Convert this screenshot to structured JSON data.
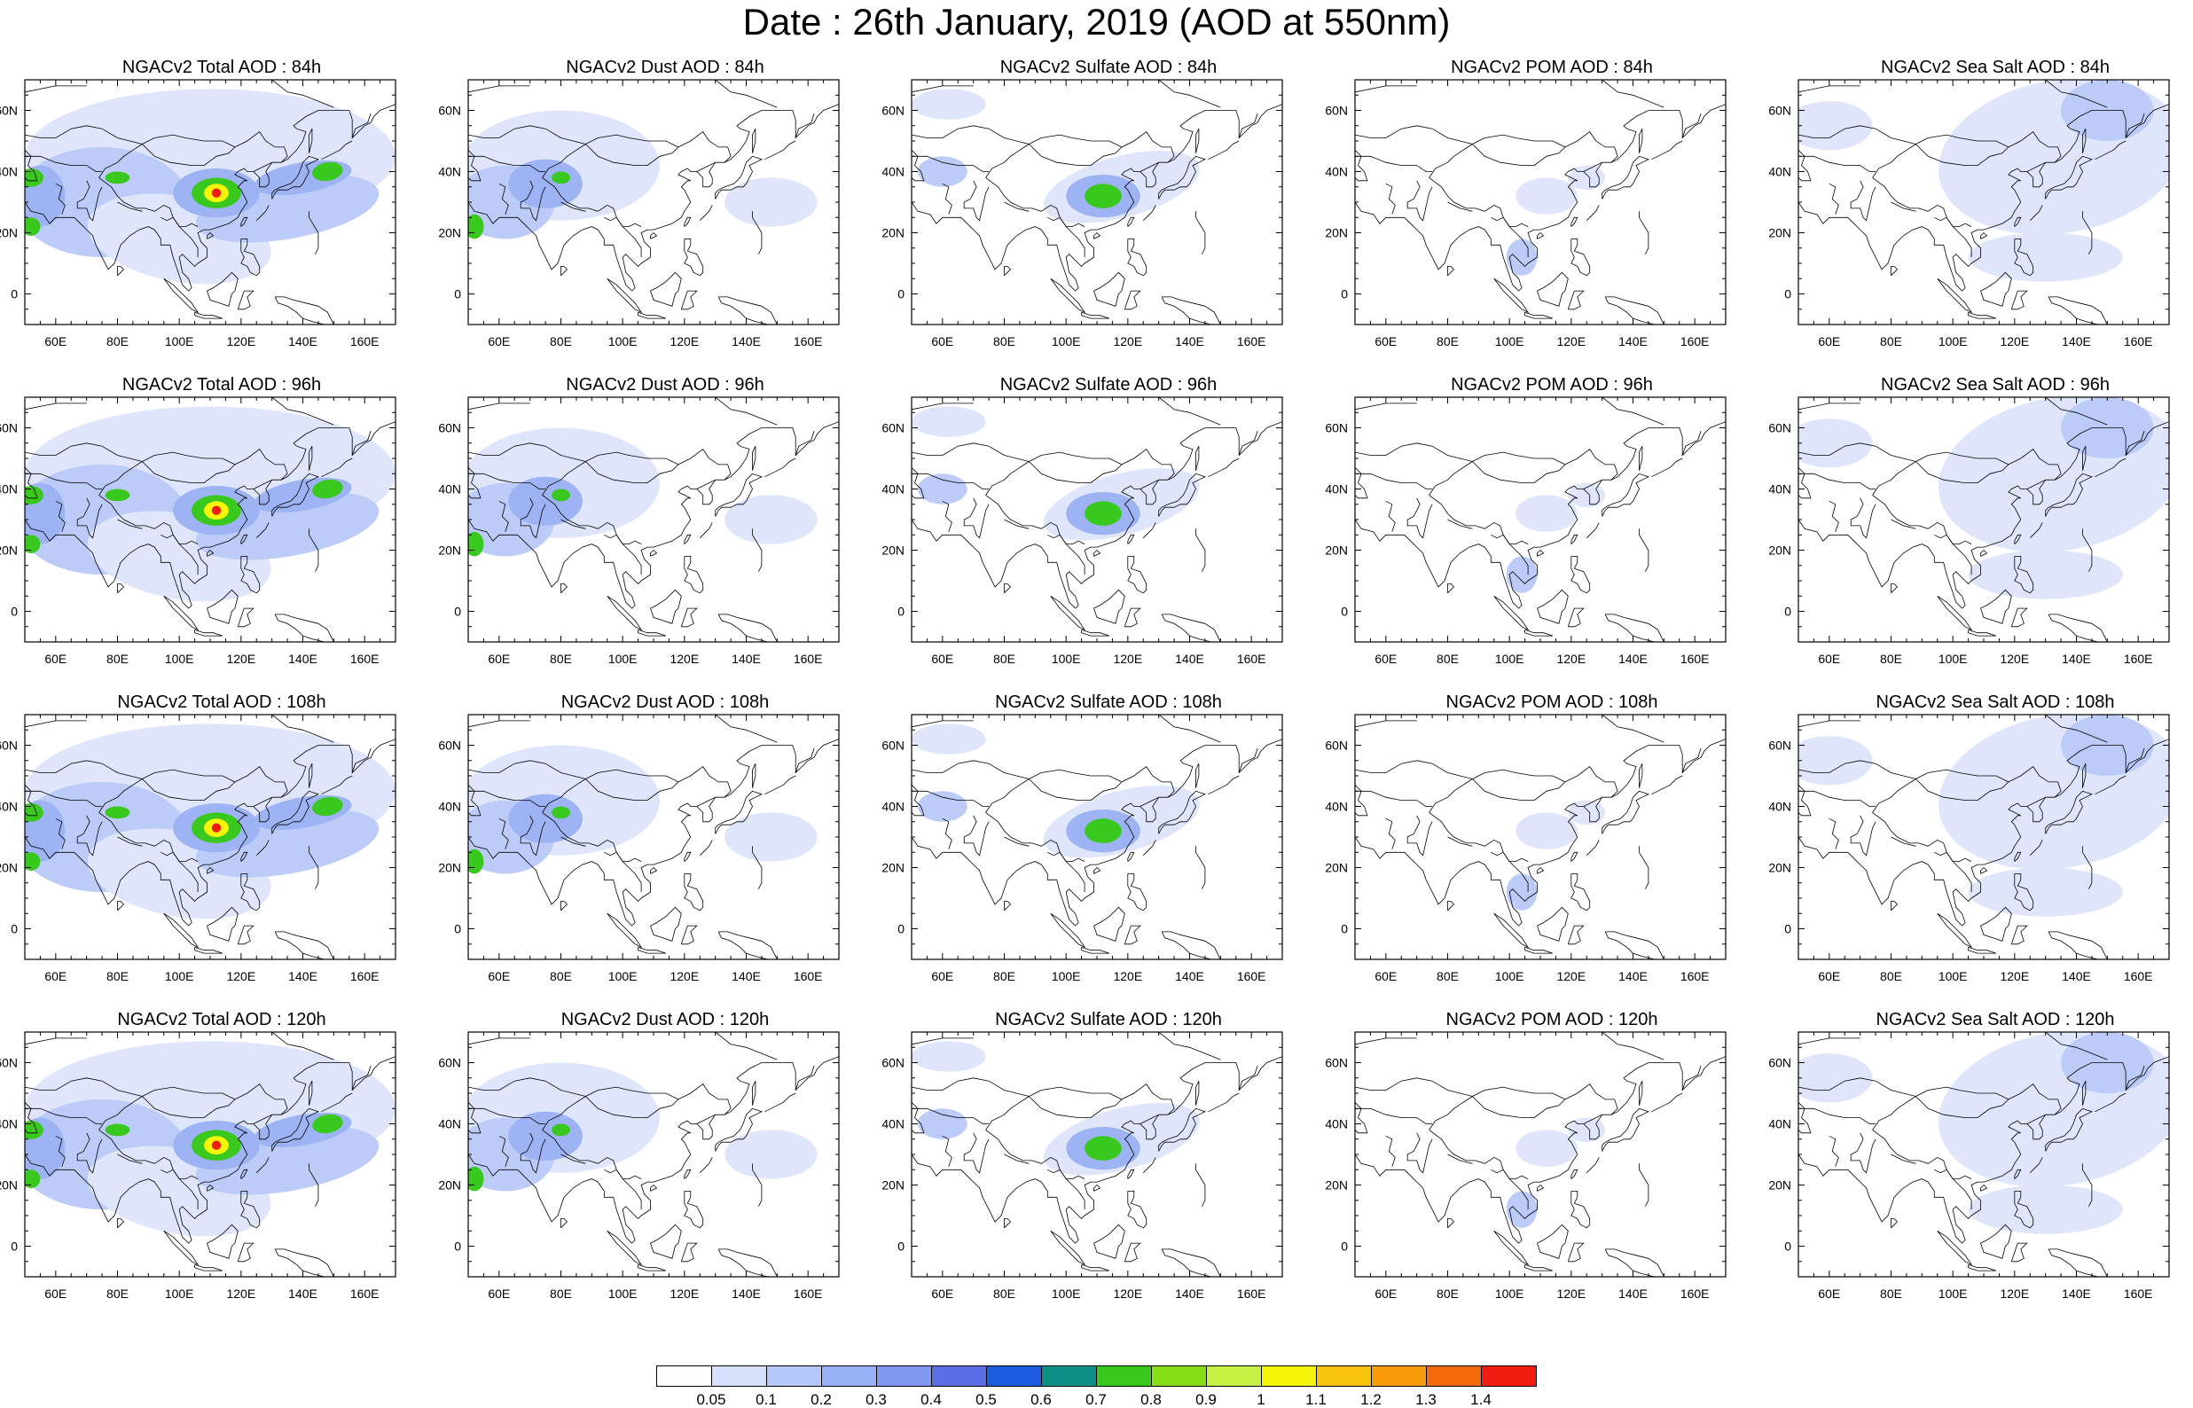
{
  "title": "Date : 26th January, 2019 (AOD at 550nm)",
  "lon_ticks": [
    "60E",
    "80E",
    "100E",
    "120E",
    "140E",
    "160E"
  ],
  "lat_ticks": [
    "60N",
    "40N",
    "20N",
    "0"
  ],
  "colorbar": {
    "labels": [
      "0.05",
      "0.1",
      "0.2",
      "0.3",
      "0.4",
      "0.5",
      "0.6",
      "0.7",
      "0.8",
      "0.9",
      "1",
      "1.1",
      "1.2",
      "1.3",
      "1.4"
    ],
    "colors": [
      "#ffffff",
      "#d6e0fb",
      "#b5c7f8",
      "#98b1f6",
      "#7f98f0",
      "#5a6ee5",
      "#1d5ce0",
      "#0d8f86",
      "#39c81d",
      "#85e015",
      "#c6f043",
      "#f5f50a",
      "#f8c30a",
      "#f89b0a",
      "#f36a0c",
      "#ee1d10"
    ]
  },
  "map_colors": {
    "c1": "#dfe6fb",
    "c2": "#bccbf8",
    "c3": "#9db3f3",
    "c4": "#7e96ec",
    "c5": "#5d72e3",
    "c6": "#2b5fe0",
    "green": "#39c81d",
    "lime": "#8fe01a",
    "yellow": "#f5f50a",
    "orange": "#f59d0a",
    "red": "#ee1d10"
  },
  "panels": [
    {
      "id": "total-84",
      "title": "NGACv2 Total AOD : 84h",
      "species": "total"
    },
    {
      "id": "dust-84",
      "title": "NGACv2 Dust AOD : 84h",
      "species": "dust"
    },
    {
      "id": "sulfate-84",
      "title": "NGACv2 Sulfate AOD : 84h",
      "species": "sulfate"
    },
    {
      "id": "pom-84",
      "title": "NGACv2 POM AOD : 84h",
      "species": "pom"
    },
    {
      "id": "seasalt-84",
      "title": "NGACv2 Sea Salt AOD : 84h",
      "species": "seasalt"
    },
    {
      "id": "total-96",
      "title": "NGACv2 Total AOD : 96h",
      "species": "total"
    },
    {
      "id": "dust-96",
      "title": "NGACv2 Dust AOD : 96h",
      "species": "dust"
    },
    {
      "id": "sulfate-96",
      "title": "NGACv2 Sulfate AOD : 96h",
      "species": "sulfate"
    },
    {
      "id": "pom-96",
      "title": "NGACv2 POM AOD : 96h",
      "species": "pom"
    },
    {
      "id": "seasalt-96",
      "title": "NGACv2 Sea Salt AOD : 96h",
      "species": "seasalt"
    },
    {
      "id": "total-108",
      "title": "NGACv2 Total AOD : 108h",
      "species": "total"
    },
    {
      "id": "dust-108",
      "title": "NGACv2 Dust AOD : 108h",
      "species": "dust"
    },
    {
      "id": "sulfate-108",
      "title": "NGACv2 Sulfate AOD : 108h",
      "species": "sulfate"
    },
    {
      "id": "pom-108",
      "title": "NGACv2 POM AOD : 108h",
      "species": "pom"
    },
    {
      "id": "seasalt-108",
      "title": "NGACv2 Sea Salt AOD : 108h",
      "species": "seasalt"
    },
    {
      "id": "total-120",
      "title": "NGACv2 Total AOD : 120h",
      "species": "total"
    },
    {
      "id": "dust-120",
      "title": "NGACv2 Dust AOD : 120h",
      "species": "dust"
    },
    {
      "id": "sulfate-120",
      "title": "NGACv2 Sulfate AOD : 120h",
      "species": "sulfate"
    },
    {
      "id": "pom-120",
      "title": "NGACv2 POM AOD : 120h",
      "species": "pom"
    },
    {
      "id": "seasalt-120",
      "title": "NGACv2 Sea Salt  AOD : 120h",
      "species": "seasalt"
    }
  ]
}
